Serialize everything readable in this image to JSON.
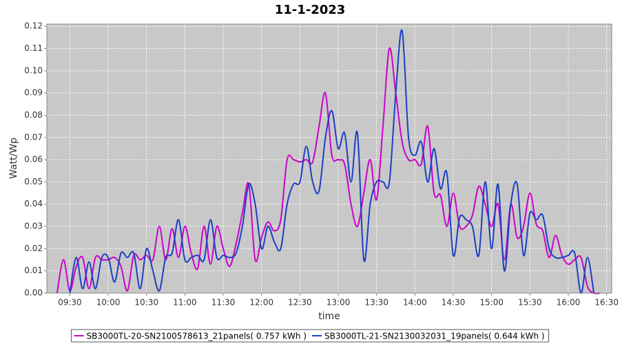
{
  "chart_data": {
    "type": "line",
    "title": "11-1-2023",
    "x_label": "time",
    "y_label": "Watt/Wp",
    "x": [
      "09:15",
      "09:20",
      "09:25",
      "09:30",
      "09:35",
      "09:40",
      "09:45",
      "09:50",
      "09:55",
      "10:00",
      "10:05",
      "10:10",
      "10:15",
      "10:20",
      "10:25",
      "10:30",
      "10:35",
      "10:40",
      "10:45",
      "10:50",
      "10:55",
      "11:00",
      "11:05",
      "11:10",
      "11:15",
      "11:20",
      "11:25",
      "11:30",
      "11:35",
      "11:40",
      "11:45",
      "11:50",
      "11:55",
      "12:00",
      "12:05",
      "12:10",
      "12:15",
      "12:20",
      "12:25",
      "12:30",
      "12:35",
      "12:40",
      "12:45",
      "12:50",
      "12:55",
      "13:00",
      "13:05",
      "13:10",
      "13:15",
      "13:20",
      "13:25",
      "13:30",
      "13:35",
      "13:40",
      "13:45",
      "13:50",
      "13:55",
      "14:00",
      "14:05",
      "14:10",
      "14:15",
      "14:20",
      "14:25",
      "14:30",
      "14:35",
      "14:40",
      "14:45",
      "14:50",
      "14:55",
      "15:00",
      "15:05",
      "15:10",
      "15:15",
      "15:20",
      "15:25",
      "15:30",
      "15:35",
      "15:40",
      "15:45",
      "15:50",
      "15:55",
      "16:00",
      "16:05",
      "16:10",
      "16:15",
      "16:20",
      "16:25"
    ],
    "series": [
      {
        "name": "SB3000TL-20-SN2100578613_21panels( 0.757 kWh )",
        "color": "#cc00cc",
        "values": [
          null,
          0.0,
          0.015,
          0.001,
          0.012,
          0.016,
          0.002,
          0.016,
          0.015,
          0.015,
          0.016,
          0.012,
          0.001,
          0.017,
          0.015,
          0.017,
          0.015,
          0.03,
          0.015,
          0.029,
          0.016,
          0.03,
          0.018,
          0.011,
          0.03,
          0.013,
          0.03,
          0.02,
          0.012,
          0.022,
          0.036,
          0.049,
          0.015,
          0.025,
          0.032,
          0.028,
          0.033,
          0.06,
          0.06,
          0.059,
          0.06,
          0.059,
          0.075,
          0.09,
          0.062,
          0.06,
          0.058,
          0.04,
          0.03,
          0.045,
          0.06,
          0.042,
          0.075,
          0.11,
          0.09,
          0.068,
          0.06,
          0.06,
          0.058,
          0.075,
          0.045,
          0.044,
          0.03,
          0.045,
          0.03,
          0.03,
          0.035,
          0.048,
          0.04,
          0.03,
          0.04,
          0.015,
          0.04,
          0.025,
          0.03,
          0.045,
          0.031,
          0.028,
          0.016,
          0.026,
          0.017,
          0.013,
          0.015,
          0.016,
          0.003,
          0.0,
          0.0
        ]
      },
      {
        "name": "SB3000TL-21-SN2130032031_19panels( 0.644 kWh )",
        "color": "#1a3fc4",
        "values": [
          null,
          null,
          null,
          0.0,
          0.016,
          0.002,
          0.014,
          0.002,
          0.016,
          0.016,
          0.005,
          0.018,
          0.016,
          0.018,
          0.002,
          0.02,
          0.01,
          0.001,
          0.016,
          0.018,
          0.033,
          0.015,
          0.016,
          0.017,
          0.015,
          0.033,
          0.016,
          0.017,
          0.016,
          0.018,
          0.03,
          0.049,
          0.04,
          0.02,
          0.03,
          0.023,
          0.02,
          0.04,
          0.049,
          0.05,
          0.066,
          0.05,
          0.046,
          0.07,
          0.082,
          0.065,
          0.072,
          0.05,
          0.072,
          0.015,
          0.04,
          0.05,
          0.05,
          0.05,
          0.09,
          0.118,
          0.07,
          0.062,
          0.068,
          0.05,
          0.065,
          0.047,
          0.054,
          0.017,
          0.034,
          0.033,
          0.03,
          0.017,
          0.05,
          0.02,
          0.049,
          0.01,
          0.04,
          0.049,
          0.017,
          0.036,
          0.033,
          0.035,
          0.02,
          0.016,
          0.016,
          0.017,
          0.018,
          0.0,
          0.016,
          0.0,
          null
        ]
      }
    ],
    "xlim": [
      "09:12",
      "16:34"
    ],
    "xticks": [
      "09:30",
      "10:00",
      "10:30",
      "11:00",
      "11:30",
      "12:00",
      "12:30",
      "13:00",
      "13:30",
      "14:00",
      "14:30",
      "15:00",
      "15:30",
      "16:00",
      "16:30"
    ],
    "ylim": [
      0,
      0.121
    ],
    "yticks": [
      {
        "value": 0,
        "label": "0.00"
      },
      0.01,
      0.02,
      0.03,
      0.04,
      0.05,
      0.06,
      0.07,
      0.08,
      0.09,
      {
        "value": 0.1,
        "label": "0.10"
      },
      0.11,
      0.12
    ],
    "grid": true,
    "legend": "bottom"
  }
}
